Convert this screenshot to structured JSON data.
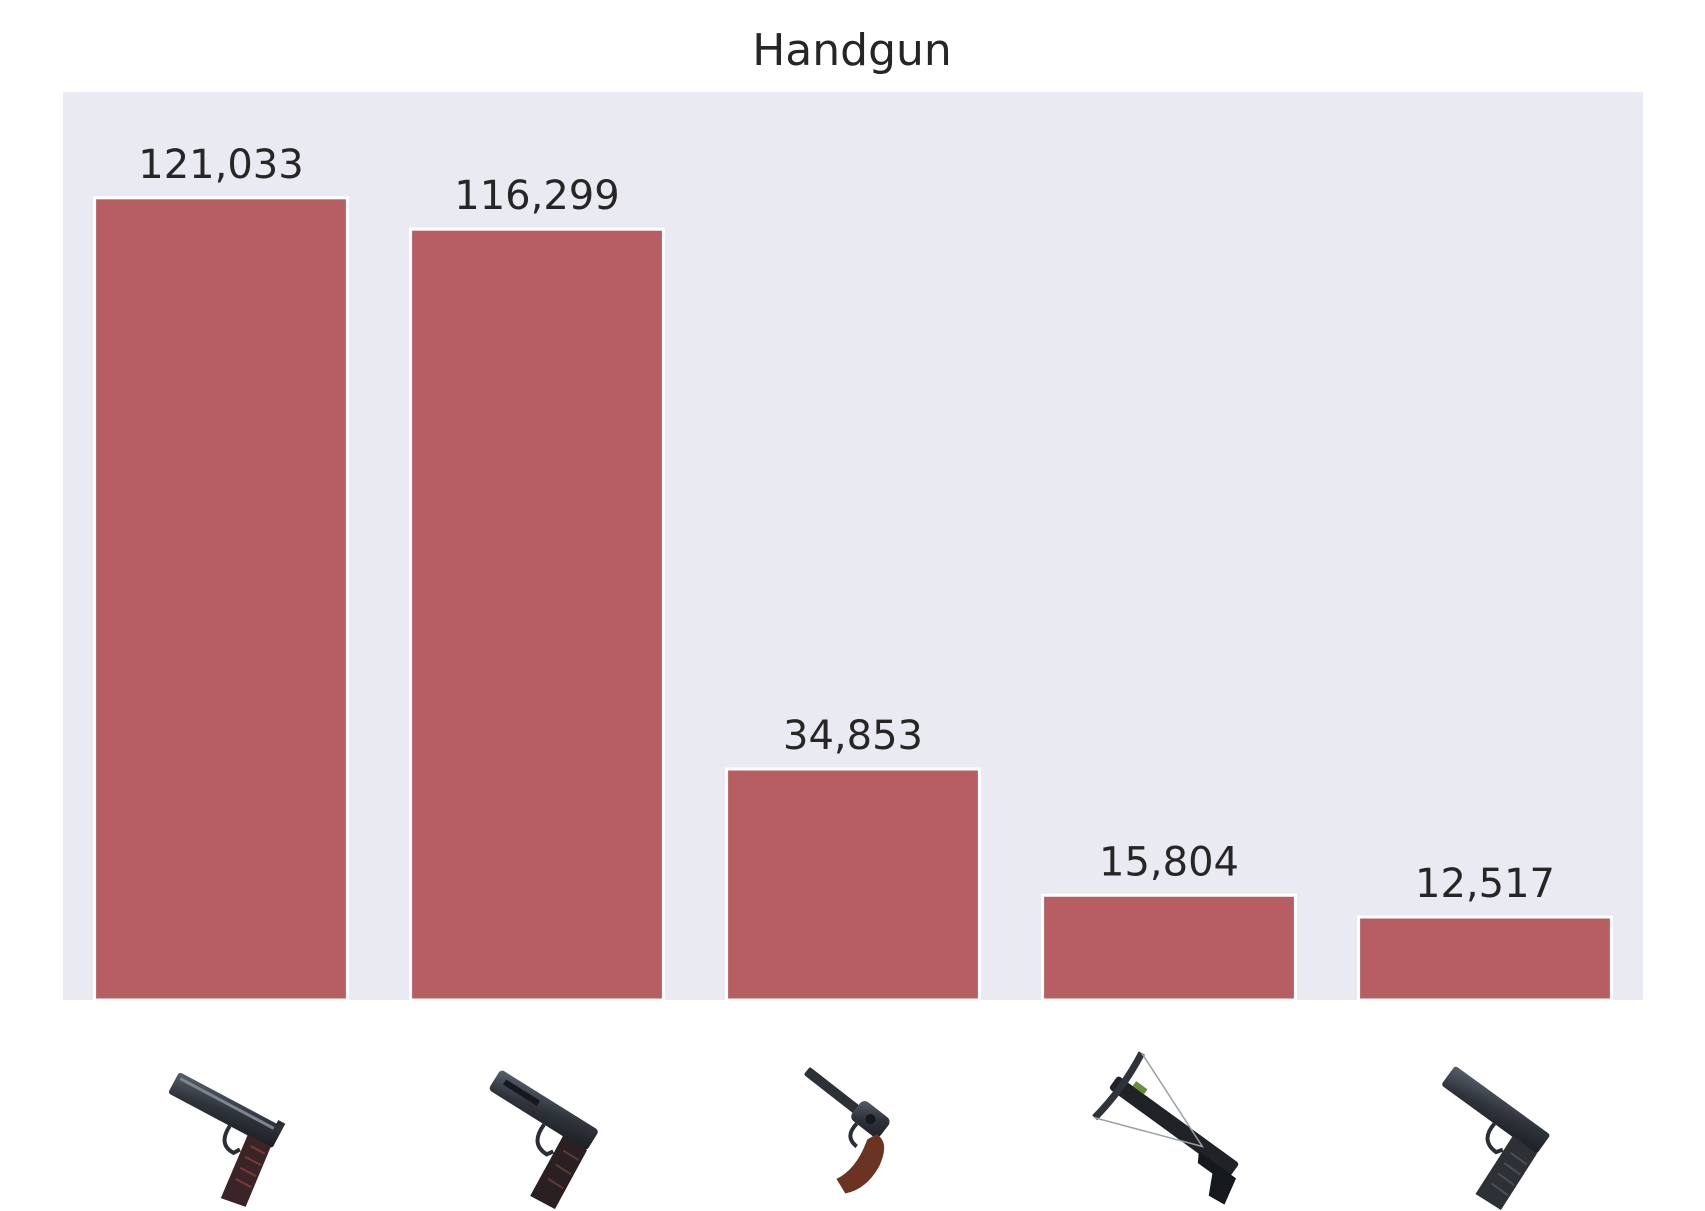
{
  "chart_data": {
    "type": "bar",
    "title": "Handgun",
    "xlabel": "",
    "ylabel": "",
    "ylim": [
      0,
      137000
    ],
    "grid": false,
    "categories": [
      "handgun-1911-icon",
      "handgun-beretta-icon",
      "revolver-icon",
      "crossbow-icon",
      "handgun-glock-icon"
    ],
    "values": [
      121033,
      116299,
      34853,
      15804,
      12517
    ],
    "value_labels": [
      "121,033",
      "116,299",
      "34,853",
      "15,804",
      "12,517"
    ],
    "colors": {
      "bar": "#b75e62",
      "bar_edge": "#ffffff",
      "plot_background": "#eaeaf2",
      "text": "#262626"
    }
  }
}
